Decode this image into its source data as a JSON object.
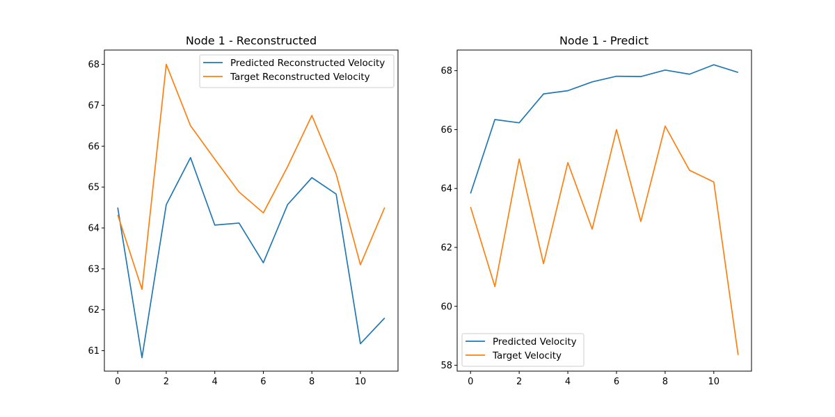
{
  "chart_data": [
    {
      "type": "line",
      "title": "Node 1 - Reconstructed",
      "xlabel": "",
      "ylabel": "",
      "xlim": [
        -0.55,
        11.55
      ],
      "ylim": [
        60.5,
        68.35
      ],
      "xticks": [
        0,
        2,
        4,
        6,
        8,
        10
      ],
      "yticks": [
        61,
        62,
        63,
        64,
        65,
        66,
        67,
        68
      ],
      "legend_position": "top-right",
      "grid": false,
      "x": [
        0,
        1,
        2,
        3,
        4,
        5,
        6,
        7,
        8,
        9,
        10,
        11
      ],
      "series": [
        {
          "name": "Predicted Reconstructed Velocity",
          "color": "#1f77b4",
          "values": [
            64.5,
            60.83,
            64.57,
            65.72,
            64.07,
            64.12,
            63.15,
            64.57,
            65.23,
            64.83,
            61.17,
            61.8
          ]
        },
        {
          "name": "Target Reconstructed Velocity",
          "color": "#ff7f0e",
          "values": [
            64.32,
            62.5,
            68.0,
            66.5,
            65.68,
            64.88,
            64.37,
            65.5,
            66.75,
            65.32,
            63.1,
            64.5
          ]
        }
      ]
    },
    {
      "type": "line",
      "title": "Node 1 - Predict",
      "xlabel": "",
      "ylabel": "",
      "xlim": [
        -0.55,
        11.55
      ],
      "ylim": [
        57.8,
        68.7
      ],
      "xticks": [
        0,
        2,
        4,
        6,
        8,
        10
      ],
      "yticks": [
        58,
        60,
        62,
        64,
        66,
        68
      ],
      "legend_position": "lower-left",
      "grid": false,
      "x": [
        0,
        1,
        2,
        3,
        4,
        5,
        6,
        7,
        8,
        9,
        10,
        11
      ],
      "series": [
        {
          "name": "Predicted Velocity",
          "color": "#1f77b4",
          "values": [
            63.83,
            66.34,
            66.23,
            67.21,
            67.32,
            67.62,
            67.81,
            67.8,
            68.02,
            67.88,
            68.2,
            67.94
          ]
        },
        {
          "name": "Target Velocity",
          "color": "#ff7f0e",
          "values": [
            63.37,
            60.67,
            65.0,
            61.45,
            64.88,
            62.62,
            66.0,
            62.88,
            66.12,
            64.62,
            64.22,
            58.35
          ]
        }
      ]
    }
  ]
}
